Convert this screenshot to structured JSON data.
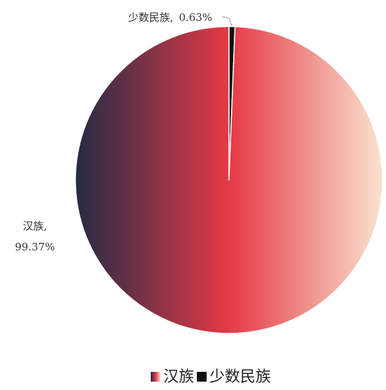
{
  "chart_data": {
    "type": "pie",
    "categories": [
      "汉族",
      "少数民族"
    ],
    "values": [
      99.37,
      0.63
    ],
    "value_labels": [
      "99.37%",
      "0.63%"
    ],
    "label_separator": ",",
    "colors": [
      "#e63946",
      "#111111"
    ],
    "gradient": [
      "#1e2b45",
      "#e63946",
      "#fbe6d2"
    ],
    "legend": "bottom"
  }
}
